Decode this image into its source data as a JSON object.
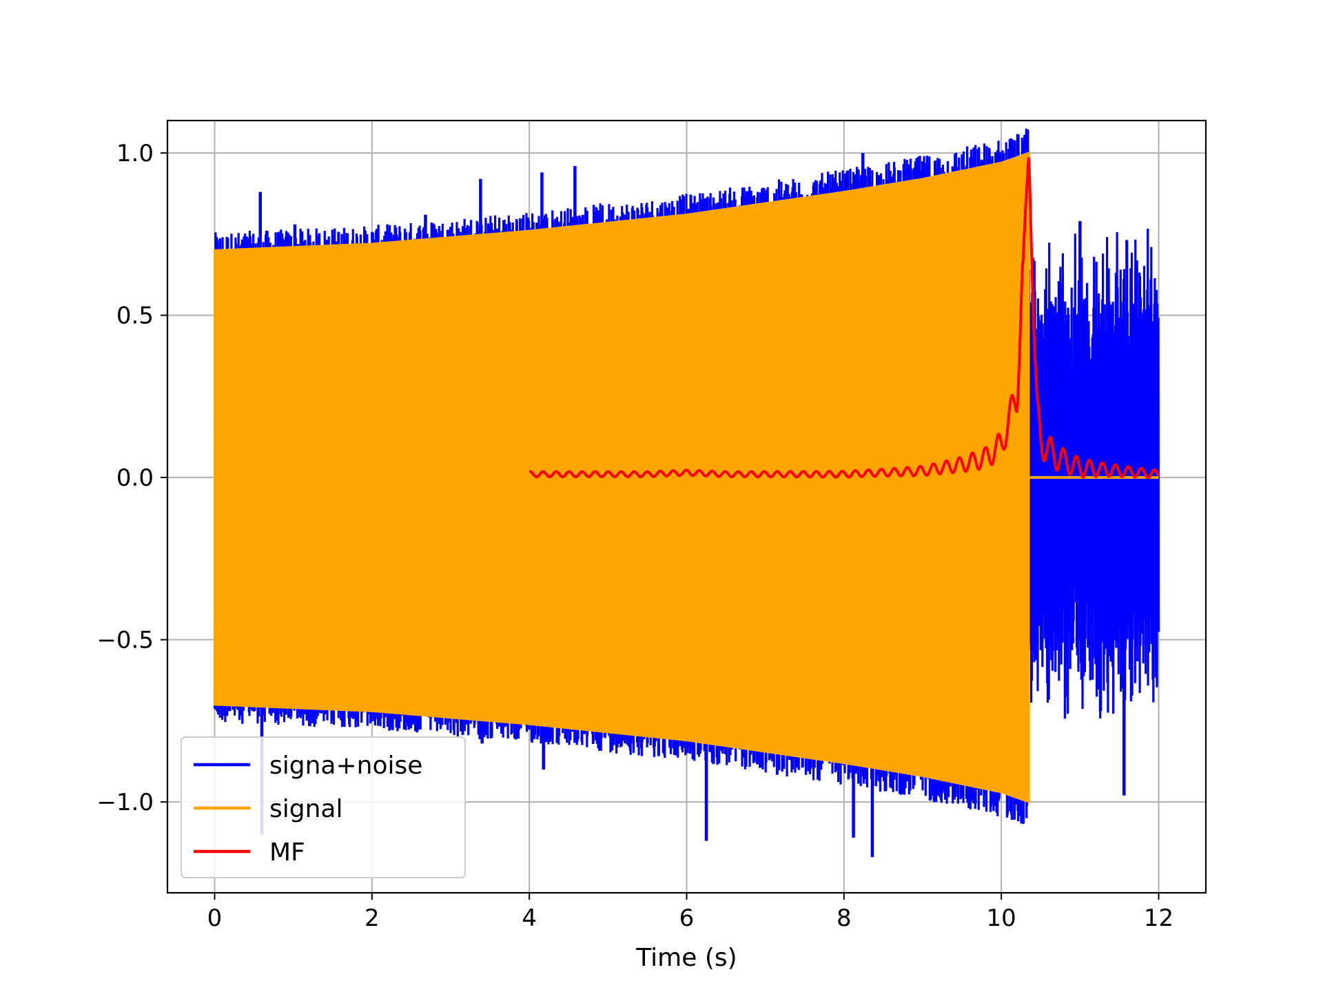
{
  "chart_data": {
    "type": "line",
    "title": "",
    "xlabel": "Time (s)",
    "ylabel": "",
    "xlim": [
      -0.6,
      12.6
    ],
    "ylim": [
      -1.28,
      1.1
    ],
    "grid": true,
    "x_ticks": [
      0,
      2,
      4,
      6,
      8,
      10,
      12
    ],
    "x_tick_labels": [
      "0",
      "2",
      "4",
      "6",
      "8",
      "10",
      "12"
    ],
    "y_ticks": [
      1.0,
      0.5,
      0.0,
      -0.5,
      -1.0
    ],
    "y_tick_labels": [
      "1.0",
      "0.5",
      "0.0",
      "−0.5",
      "−1.0"
    ],
    "legend_position": "lower-left",
    "series": [
      {
        "name": "signa+noise",
        "color": "#0000ff",
        "kind": "dense-oscillation",
        "x_range": [
          0.0,
          12.0
        ],
        "spikes": [
          {
            "x": 0.58,
            "y": 0.88
          },
          {
            "x": 0.6,
            "y": -1.1
          },
          {
            "x": 1.02,
            "y": 0.78
          },
          {
            "x": 2.68,
            "y": 0.81
          },
          {
            "x": 3.38,
            "y": 0.92
          },
          {
            "x": 3.4,
            "y": -0.82
          },
          {
            "x": 4.16,
            "y": 0.94
          },
          {
            "x": 4.18,
            "y": -0.9
          },
          {
            "x": 4.58,
            "y": 0.96
          },
          {
            "x": 6.22,
            "y": 0.86
          },
          {
            "x": 6.25,
            "y": -1.12
          },
          {
            "x": 8.24,
            "y": 1.0
          },
          {
            "x": 8.12,
            "y": -1.11
          },
          {
            "x": 8.36,
            "y": -1.17
          },
          {
            "x": 11.56,
            "y": -0.98
          },
          {
            "x": 11.0,
            "y": 0.79
          },
          {
            "x": 11.26,
            "y": -0.72
          }
        ],
        "tail_x_range": [
          10.36,
          12.0
        ],
        "tail_amplitude_range": [
          0.45,
          0.8
        ]
      },
      {
        "name": "signal",
        "color": "#ffa500",
        "kind": "chirp-envelope",
        "x": [
          0.0,
          2.0,
          4.0,
          6.0,
          8.0,
          9.0,
          10.0,
          10.35
        ],
        "envelope": [
          0.7,
          0.72,
          0.76,
          0.81,
          0.88,
          0.92,
          0.97,
          1.0
        ],
        "cutoff_x": 10.35,
        "after_cutoff_value": 0.0
      },
      {
        "name": "MF",
        "color": "#ff0000",
        "kind": "line",
        "x": [
          4.0,
          4.5,
          5.0,
          5.5,
          6.0,
          6.5,
          7.0,
          7.5,
          8.0,
          8.5,
          9.0,
          9.5,
          9.8,
          10.0,
          10.1,
          10.2,
          10.3,
          10.35,
          10.4,
          10.45,
          10.5,
          10.6,
          10.8,
          11.0,
          11.5,
          12.0
        ],
        "y": [
          0.01,
          0.01,
          0.01,
          0.01,
          0.015,
          0.01,
          0.01,
          0.01,
          0.01,
          0.015,
          0.02,
          0.04,
          0.06,
          0.1,
          0.18,
          0.25,
          0.8,
          1.0,
          0.55,
          0.2,
          0.12,
          0.08,
          0.05,
          0.03,
          0.02,
          0.01
        ]
      }
    ]
  }
}
